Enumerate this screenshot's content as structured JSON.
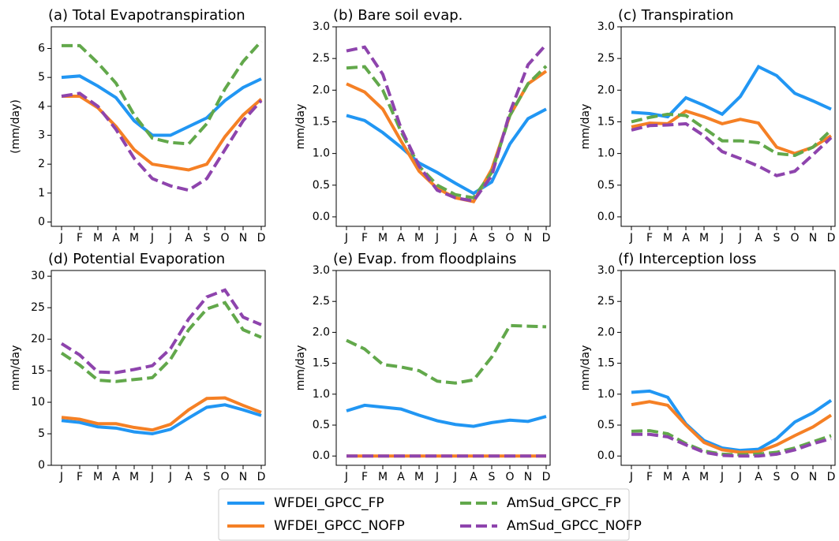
{
  "chart_data": [
    {
      "type": "line",
      "title": "(a) Total Evapotranspiration",
      "ylabel": "(mm/day)",
      "categories": [
        "J",
        "F",
        "M",
        "A",
        "M",
        "J",
        "J",
        "A",
        "S",
        "O",
        "N",
        "D"
      ],
      "ylim": [
        -0.15,
        6.75
      ],
      "yticks": [
        0,
        1,
        2,
        3,
        4,
        5,
        6
      ],
      "series": [
        {
          "name": "WFDEI_GPCC_FP",
          "color": "#2196f3",
          "linestyle": "solid",
          "values": [
            5.0,
            5.05,
            4.7,
            4.3,
            3.5,
            3.0,
            3.0,
            3.3,
            3.6,
            4.2,
            4.65,
            4.95
          ]
        },
        {
          "name": "WFDEI_GPCC_NOFP",
          "color": "#f58025",
          "linestyle": "solid",
          "values": [
            4.35,
            4.35,
            3.95,
            3.3,
            2.5,
            2.0,
            1.9,
            1.8,
            2.0,
            2.95,
            3.7,
            4.25
          ]
        },
        {
          "name": "AmSud_GPCC_FP",
          "color": "#62a84b",
          "linestyle": "dashed",
          "values": [
            6.1,
            6.1,
            5.5,
            4.8,
            3.7,
            2.9,
            2.75,
            2.7,
            3.4,
            4.6,
            5.55,
            6.25
          ]
        },
        {
          "name": "AmSud_GPCC_NOFP",
          "color": "#8e44ad",
          "linestyle": "dashed",
          "values": [
            4.35,
            4.45,
            4.0,
            3.2,
            2.2,
            1.5,
            1.25,
            1.1,
            1.5,
            2.5,
            3.5,
            4.2
          ]
        }
      ]
    },
    {
      "type": "line",
      "title": "(b) Bare soil evap.",
      "ylabel": "mm/day",
      "categories": [
        "J",
        "F",
        "M",
        "A",
        "M",
        "J",
        "J",
        "A",
        "S",
        "O",
        "N",
        "D"
      ],
      "ylim": [
        -0.15,
        3.0
      ],
      "yticks": [
        {
          "value": 0,
          "label": "0.0"
        },
        0.5,
        {
          "value": 1,
          "label": "1.0"
        },
        1.5,
        {
          "value": 2,
          "label": "2.0"
        },
        2.5,
        {
          "value": 3,
          "label": "3.0"
        }
      ],
      "series": [
        {
          "name": "WFDEI_GPCC_FP",
          "color": "#2196f3",
          "linestyle": "solid",
          "values": [
            1.6,
            1.52,
            1.33,
            1.1,
            0.85,
            0.7,
            0.53,
            0.37,
            0.55,
            1.15,
            1.55,
            1.7
          ]
        },
        {
          "name": "WFDEI_GPCC_NOFP",
          "color": "#f58025",
          "linestyle": "solid",
          "values": [
            2.1,
            1.97,
            1.7,
            1.2,
            0.72,
            0.45,
            0.3,
            0.24,
            0.75,
            1.6,
            2.1,
            2.3
          ]
        },
        {
          "name": "AmSud_GPCC_FP",
          "color": "#62a84b",
          "linestyle": "dashed",
          "values": [
            2.35,
            2.37,
            2.0,
            1.35,
            0.8,
            0.5,
            0.35,
            0.3,
            0.7,
            1.6,
            2.1,
            2.38
          ]
        },
        {
          "name": "AmSud_GPCC_NOFP",
          "color": "#8e44ad",
          "linestyle": "dashed",
          "values": [
            2.62,
            2.68,
            2.25,
            1.4,
            0.8,
            0.42,
            0.3,
            0.25,
            0.65,
            1.65,
            2.4,
            2.72
          ]
        }
      ]
    },
    {
      "type": "line",
      "title": "(c) Transpiration",
      "ylabel": "mm/day",
      "categories": [
        "J",
        "F",
        "M",
        "A",
        "M",
        "J",
        "J",
        "A",
        "S",
        "O",
        "N",
        "D"
      ],
      "ylim": [
        -0.15,
        3.0
      ],
      "yticks": [
        {
          "value": 0,
          "label": "0.0"
        },
        0.5,
        {
          "value": 1,
          "label": "1.0"
        },
        1.5,
        {
          "value": 2,
          "label": "2.0"
        },
        2.5,
        {
          "value": 3,
          "label": "3.0"
        }
      ],
      "series": [
        {
          "name": "WFDEI_GPCC_FP",
          "color": "#2196f3",
          "linestyle": "solid",
          "values": [
            1.65,
            1.63,
            1.58,
            1.88,
            1.76,
            1.62,
            1.9,
            2.37,
            2.23,
            1.95,
            1.83,
            1.7
          ]
        },
        {
          "name": "WFDEI_GPCC_NOFP",
          "color": "#f58025",
          "linestyle": "solid",
          "values": [
            1.42,
            1.48,
            1.47,
            1.67,
            1.58,
            1.47,
            1.54,
            1.48,
            1.1,
            1.0,
            1.1,
            1.28
          ]
        },
        {
          "name": "AmSud_GPCC_FP",
          "color": "#62a84b",
          "linestyle": "dashed",
          "values": [
            1.5,
            1.57,
            1.62,
            1.6,
            1.4,
            1.2,
            1.2,
            1.17,
            1.0,
            0.97,
            1.1,
            1.37
          ]
        },
        {
          "name": "AmSud_GPCC_NOFP",
          "color": "#8e44ad",
          "linestyle": "dashed",
          "values": [
            1.37,
            1.44,
            1.45,
            1.47,
            1.28,
            1.03,
            0.92,
            0.8,
            0.65,
            0.72,
            0.98,
            1.25
          ]
        }
      ]
    },
    {
      "type": "line",
      "title": "(d) Potential Evaporation",
      "ylabel": "mm/day",
      "categories": [
        "J",
        "F",
        "M",
        "A",
        "M",
        "J",
        "J",
        "A",
        "S",
        "O",
        "N",
        "D"
      ],
      "ylim": [
        0,
        30.9
      ],
      "yticks": [
        0,
        5,
        10,
        15,
        20,
        25,
        30
      ],
      "series": [
        {
          "name": "WFDEI_GPCC_FP",
          "color": "#2196f3",
          "linestyle": "solid",
          "values": [
            7.1,
            6.8,
            6.1,
            5.9,
            5.3,
            5.0,
            5.7,
            7.5,
            9.2,
            9.6,
            8.8,
            7.9
          ]
        },
        {
          "name": "WFDEI_GPCC_NOFP",
          "color": "#f58025",
          "linestyle": "solid",
          "values": [
            7.6,
            7.3,
            6.6,
            6.6,
            6.0,
            5.6,
            6.5,
            8.8,
            10.6,
            10.7,
            9.5,
            8.4
          ]
        },
        {
          "name": "AmSud_GPCC_FP",
          "color": "#62a84b",
          "linestyle": "dashed",
          "values": [
            17.8,
            15.9,
            13.5,
            13.3,
            13.6,
            13.9,
            16.8,
            21.5,
            24.8,
            25.8,
            21.5,
            20.3
          ]
        },
        {
          "name": "AmSud_GPCC_NOFP",
          "color": "#8e44ad",
          "linestyle": "dashed",
          "values": [
            19.3,
            17.5,
            14.8,
            14.7,
            15.2,
            15.8,
            18.5,
            23.2,
            26.7,
            27.8,
            23.5,
            22.3
          ]
        }
      ]
    },
    {
      "type": "line",
      "title": "(e) Evap. from floodplains",
      "ylabel": "mm/day",
      "categories": [
        "J",
        "F",
        "M",
        "A",
        "M",
        "J",
        "J",
        "A",
        "S",
        "O",
        "N",
        "D"
      ],
      "ylim": [
        -0.15,
        3.0
      ],
      "yticks": [
        {
          "value": 0,
          "label": "0.0"
        },
        0.5,
        {
          "value": 1,
          "label": "1.0"
        },
        1.5,
        {
          "value": 2,
          "label": "2.0"
        },
        2.5,
        {
          "value": 3,
          "label": "3.0"
        }
      ],
      "series": [
        {
          "name": "WFDEI_GPCC_FP",
          "color": "#2196f3",
          "linestyle": "solid",
          "values": [
            0.73,
            0.82,
            0.79,
            0.76,
            0.66,
            0.57,
            0.51,
            0.48,
            0.54,
            0.58,
            0.56,
            0.64
          ]
        },
        {
          "name": "WFDEI_GPCC_NOFP",
          "color": "#f58025",
          "linestyle": "solid",
          "values": [
            0,
            0,
            0,
            0,
            0,
            0,
            0,
            0,
            0,
            0,
            0,
            0
          ]
        },
        {
          "name": "AmSud_GPCC_FP",
          "color": "#62a84b",
          "linestyle": "dashed",
          "values": [
            1.87,
            1.73,
            1.48,
            1.44,
            1.38,
            1.21,
            1.18,
            1.23,
            1.6,
            2.11,
            2.1,
            2.09
          ]
        },
        {
          "name": "AmSud_GPCC_NOFP",
          "color": "#8e44ad",
          "linestyle": "dashed",
          "values": [
            0,
            0,
            0,
            0,
            0,
            0,
            0,
            0,
            0,
            0,
            0,
            0
          ]
        }
      ]
    },
    {
      "type": "line",
      "title": "(f) Interception loss",
      "ylabel": "mm/day",
      "categories": [
        "J",
        "F",
        "M",
        "A",
        "M",
        "J",
        "J",
        "A",
        "S",
        "O",
        "N",
        "D"
      ],
      "ylim": [
        -0.15,
        3.0
      ],
      "yticks": [
        {
          "value": 0,
          "label": "0.0"
        },
        0.5,
        {
          "value": 1,
          "label": "1.0"
        },
        1.5,
        {
          "value": 2,
          "label": "2.0"
        },
        2.5,
        {
          "value": 3,
          "label": "3.0"
        }
      ],
      "series": [
        {
          "name": "WFDEI_GPCC_FP",
          "color": "#2196f3",
          "linestyle": "solid",
          "values": [
            1.03,
            1.05,
            0.95,
            0.52,
            0.25,
            0.13,
            0.09,
            0.11,
            0.28,
            0.55,
            0.7,
            0.9
          ]
        },
        {
          "name": "WFDEI_GPCC_NOFP",
          "color": "#f58025",
          "linestyle": "solid",
          "values": [
            0.83,
            0.88,
            0.82,
            0.5,
            0.22,
            0.1,
            0.06,
            0.07,
            0.18,
            0.33,
            0.47,
            0.66
          ]
        },
        {
          "name": "AmSud_GPCC_FP",
          "color": "#62a84b",
          "linestyle": "dashed",
          "values": [
            0.4,
            0.41,
            0.36,
            0.2,
            0.08,
            0.03,
            0.02,
            0.03,
            0.06,
            0.13,
            0.23,
            0.33
          ]
        },
        {
          "name": "AmSud_GPCC_NOFP",
          "color": "#8e44ad",
          "linestyle": "dashed",
          "values": [
            0.35,
            0.35,
            0.31,
            0.18,
            0.06,
            0.01,
            0,
            0,
            0.03,
            0.1,
            0.2,
            0.28
          ]
        }
      ]
    }
  ]
}
